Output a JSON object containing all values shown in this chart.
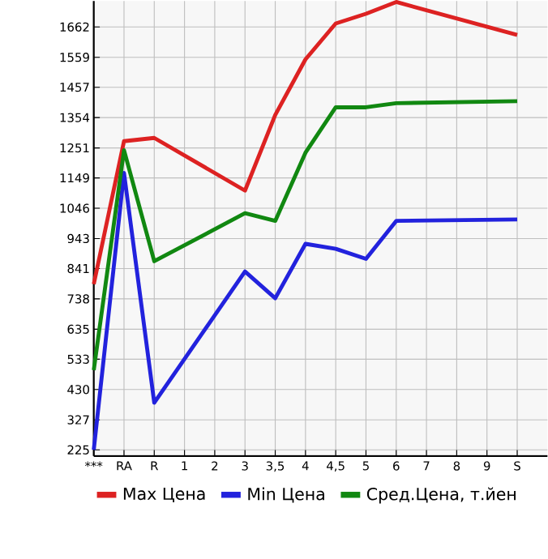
{
  "chart_data": {
    "type": "line",
    "categories": [
      "***",
      "RA",
      "R",
      "1",
      "2",
      "3",
      "3,5",
      "4",
      "4,5",
      "5",
      "6",
      "7",
      "8",
      "9",
      "S"
    ],
    "series": [
      {
        "name": "Max Цена",
        "color": "#dd2222",
        "values": [
          788,
          1274,
          1285,
          null,
          null,
          1106,
          1363,
          1552,
          1674,
          1707,
          1747,
          null,
          null,
          null,
          1635
        ]
      },
      {
        "name": "Min Цена",
        "color": "#2222dd",
        "values": [
          225,
          1166,
          385,
          null,
          null,
          831,
          740,
          925,
          908,
          874,
          1003,
          null,
          null,
          null,
          1008
        ]
      },
      {
        "name": "Сред.Цена, т.йен",
        "color": "#118811",
        "values": [
          496,
          1243,
          866,
          null,
          null,
          1029,
          1003,
          1235,
          1389,
          1389,
          1403,
          null,
          null,
          null,
          1410
        ]
      }
    ],
    "ylim": [
      204,
      1750
    ],
    "yticks": [
      225,
      327,
      430,
      533,
      635,
      738,
      841,
      943,
      1046,
      1149,
      1251,
      1354,
      1457,
      1559,
      1662
    ],
    "grid": true,
    "legend": "bottom",
    "marker": "none",
    "line_style": "solid"
  }
}
